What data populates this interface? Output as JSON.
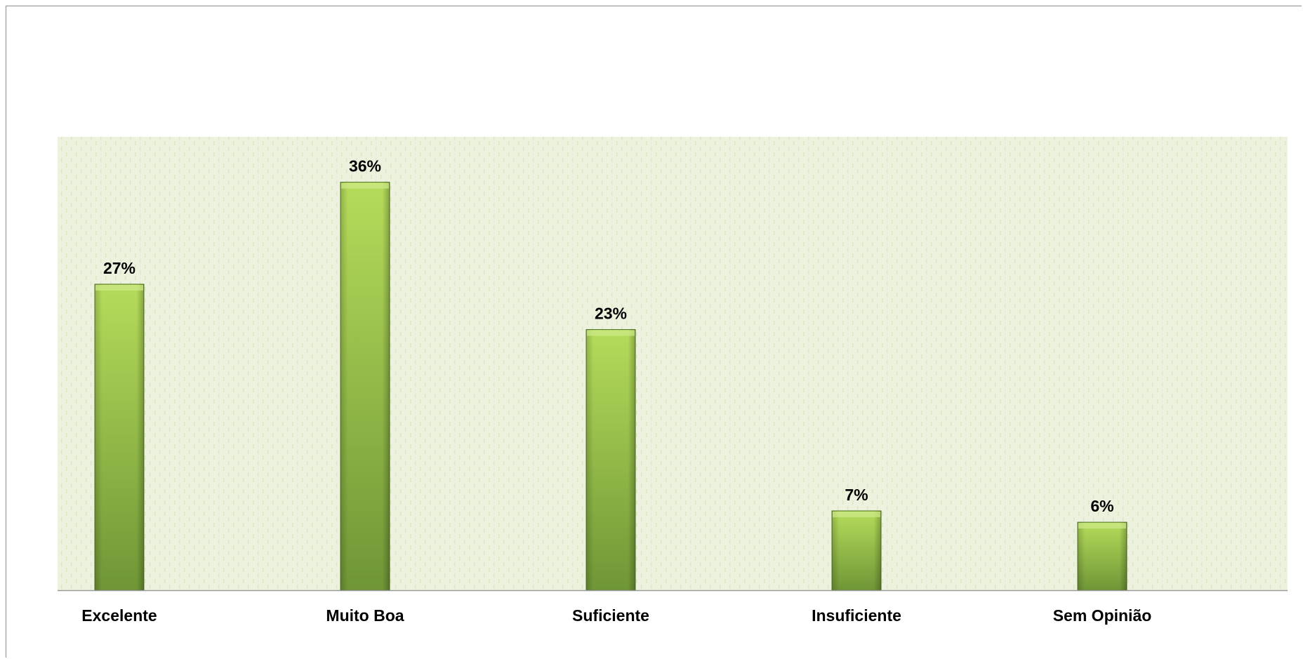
{
  "chart_data": {
    "type": "bar",
    "categories": [
      "Excelente",
      "Muito Boa",
      "Suficiente",
      "Insuficiente",
      "Sem Opinião"
    ],
    "values": [
      27,
      36,
      23,
      7,
      6
    ],
    "data_labels": [
      "27%",
      "36%",
      "23%",
      "7%",
      "6%"
    ],
    "value_unit": "%",
    "title": "",
    "xlabel": "",
    "ylabel": "",
    "ylim": [
      0,
      40
    ],
    "grid": false,
    "legend": "none",
    "colors": {
      "bar_top": "#b5dc5a",
      "bar_bottom": "#6f9636",
      "bar_edge": "#4f7424",
      "plot_bg": "#edf2de",
      "plot_pattern": "#dde6c3",
      "axis": "#9a9a9a"
    }
  }
}
